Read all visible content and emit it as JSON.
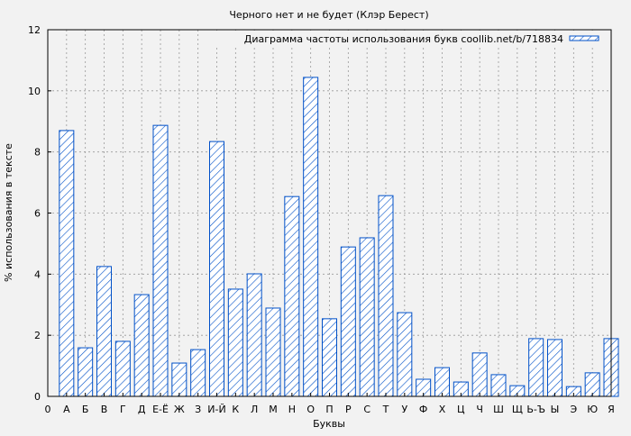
{
  "chart_data": {
    "type": "bar",
    "title": "Черного нет и не будет (Клэр Берест)",
    "xlabel": "Буквы",
    "ylabel": "% использования в тексте",
    "ylim": [
      0,
      12
    ],
    "yticks": [
      0,
      2,
      4,
      6,
      8,
      10,
      12
    ],
    "x_origin_label": "0",
    "grid": true,
    "legend_position": "top-right",
    "categories": [
      "А",
      "Б",
      "В",
      "Г",
      "Д",
      "Е-Ё",
      "Ж",
      "З",
      "И-Й",
      "К",
      "Л",
      "М",
      "Н",
      "О",
      "П",
      "Р",
      "С",
      "Т",
      "У",
      "Ф",
      "Х",
      "Ц",
      "Ч",
      "Ш",
      "Щ",
      "Ь-Ъ",
      "Ы",
      "Э",
      "Ю",
      "Я"
    ],
    "series": [
      {
        "name": "Диаграмма частоты использования букв coollib.net/b/718834",
        "color": "#0050c8",
        "values": [
          8.7,
          1.59,
          4.25,
          1.8,
          3.33,
          8.87,
          1.09,
          1.53,
          8.34,
          3.51,
          4.01,
          2.89,
          6.54,
          10.44,
          2.54,
          4.89,
          5.19,
          6.57,
          2.74,
          0.56,
          0.94,
          0.47,
          1.42,
          0.71,
          0.35,
          1.89,
          1.86,
          0.32,
          0.77,
          1.89
        ]
      }
    ]
  }
}
